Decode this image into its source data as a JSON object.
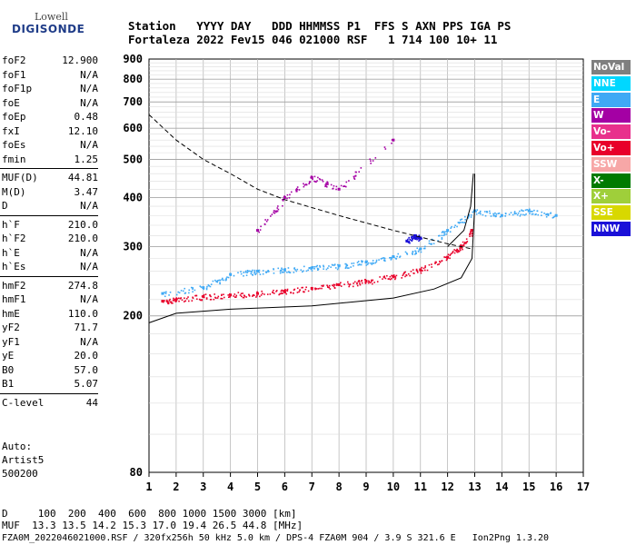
{
  "header": {
    "logo_line1": "Lowell",
    "logo_line2": "DIGISONDE",
    "row1": "Station   YYYY DAY   DDD HHMMSS P1  FFS S AXN PPS IGA PS",
    "row2": "Fortaleza 2022 Fev15 046 021000 RSF   1 714 100 10+ 11"
  },
  "params_group1": [
    {
      "k": "foF2",
      "v": "12.900"
    },
    {
      "k": "foF1",
      "v": "N/A"
    },
    {
      "k": "foF1p",
      "v": "N/A"
    },
    {
      "k": "foE",
      "v": "N/A"
    },
    {
      "k": "foEp",
      "v": "0.48"
    },
    {
      "k": "fxI",
      "v": "12.10"
    },
    {
      "k": "foEs",
      "v": "N/A"
    },
    {
      "k": "fmin",
      "v": "1.25"
    }
  ],
  "params_group2": [
    {
      "k": "MUF(D)",
      "v": "44.81"
    },
    {
      "k": "M(D)",
      "v": "3.47"
    },
    {
      "k": "D",
      "v": "N/A"
    }
  ],
  "params_group3": [
    {
      "k": "h`F",
      "v": "210.0"
    },
    {
      "k": "h`F2",
      "v": "210.0"
    },
    {
      "k": "h`E",
      "v": "N/A"
    },
    {
      "k": "h`Es",
      "v": "N/A"
    }
  ],
  "params_group4": [
    {
      "k": "hmF2",
      "v": "274.8"
    },
    {
      "k": "hmF1",
      "v": "N/A"
    },
    {
      "k": "hmE",
      "v": "110.0"
    },
    {
      "k": "yF2",
      "v": "71.7"
    },
    {
      "k": "yF1",
      "v": "N/A"
    },
    {
      "k": "yE",
      "v": "20.0"
    },
    {
      "k": "B0",
      "v": "57.0"
    },
    {
      "k": "B1",
      "v": "5.07"
    }
  ],
  "params_group5": [
    {
      "k": "C-level",
      "v": "44"
    }
  ],
  "autoscale": {
    "line1": "Auto:",
    "line2": "Artist5",
    "line3": "500200"
  },
  "footer": {
    "d_row": "D     100  200  400  600  800 1000 1500 3000 [km]",
    "muf_row": "MUF  13.3 13.5 14.2 15.3 17.0 19.4 26.5 44.8 [MHz]",
    "info_row": "FZA0M_2022046021000.RSF / 320fx256h 50 kHz 5.0 km / DPS-4 FZA0M 904 / 3.9 S 321.6 E   Ion2Png 1.3.20"
  },
  "legend": [
    {
      "label": "NoVal",
      "color": "#7f7f7f"
    },
    {
      "label": "NNE",
      "color": "#00d7ff"
    },
    {
      "label": "E",
      "color": "#3fa9f5"
    },
    {
      "label": "W",
      "color": "#a400a4"
    },
    {
      "label": "Vo-",
      "color": "#e8308c"
    },
    {
      "label": "Vo+",
      "color": "#e8002a"
    },
    {
      "label": "SSW",
      "color": "#f7a7a7"
    },
    {
      "label": "X-",
      "color": "#007a00"
    },
    {
      "label": "X+",
      "color": "#9fcf3a"
    },
    {
      "label": "SSE",
      "color": "#d8d800"
    },
    {
      "label": "NNW",
      "color": "#1a10d8"
    }
  ],
  "chart_data": {
    "type": "scatter",
    "title": "",
    "xlabel": "",
    "ylabel": "",
    "xlim": [
      1,
      17
    ],
    "ylim": [
      80,
      900
    ],
    "y_scale": "log",
    "grid": true,
    "x_ticks": [
      1,
      2,
      3,
      4,
      5,
      6,
      7,
      8,
      9,
      10,
      11,
      12,
      13,
      14,
      15,
      16,
      17
    ],
    "y_ticks": [
      80,
      200,
      300,
      400,
      500,
      600,
      700,
      800,
      900
    ],
    "legend_position": "right",
    "series": [
      {
        "name": "Vo+",
        "values": [
          {
            "x": 1.5,
            "y": 218
          },
          {
            "x": 2,
            "y": 220
          },
          {
            "x": 3,
            "y": 224
          },
          {
            "x": 4,
            "y": 226
          },
          {
            "x": 5,
            "y": 228
          },
          {
            "x": 6,
            "y": 231
          },
          {
            "x": 7,
            "y": 235
          },
          {
            "x": 8,
            "y": 240
          },
          {
            "x": 9,
            "y": 245
          },
          {
            "x": 10,
            "y": 252
          },
          {
            "x": 11,
            "y": 262
          },
          {
            "x": 12,
            "y": 282
          },
          {
            "x": 12.5,
            "y": 300
          },
          {
            "x": 12.9,
            "y": 330
          }
        ]
      },
      {
        "name": "E",
        "values": [
          {
            "x": 1.5,
            "y": 228
          },
          {
            "x": 3,
            "y": 236
          },
          {
            "x": 4,
            "y": 255
          },
          {
            "x": 5,
            "y": 260
          },
          {
            "x": 6,
            "y": 262
          },
          {
            "x": 7,
            "y": 265
          },
          {
            "x": 8,
            "y": 268
          },
          {
            "x": 9,
            "y": 274
          },
          {
            "x": 10,
            "y": 283
          },
          {
            "x": 11,
            "y": 296
          },
          {
            "x": 12,
            "y": 330
          },
          {
            "x": 13,
            "y": 370
          },
          {
            "x": 14,
            "y": 360
          },
          {
            "x": 15,
            "y": 370
          },
          {
            "x": 16,
            "y": 360
          }
        ]
      },
      {
        "name": "NNW",
        "values": [
          {
            "x": 10.5,
            "y": 310
          },
          {
            "x": 10.8,
            "y": 320
          },
          {
            "x": 11,
            "y": 315
          }
        ]
      },
      {
        "name": "W",
        "values": [
          {
            "x": 5,
            "y": 330
          },
          {
            "x": 6,
            "y": 400
          },
          {
            "x": 7,
            "y": 450
          },
          {
            "x": 8,
            "y": 420
          },
          {
            "x": 10,
            "y": 560
          }
        ]
      }
    ],
    "curves": [
      {
        "label": "virtual-height-trace",
        "style": "solid",
        "values": [
          {
            "x": 1,
            "y": 192
          },
          {
            "x": 2,
            "y": 203
          },
          {
            "x": 4,
            "y": 208
          },
          {
            "x": 7,
            "y": 212
          },
          {
            "x": 10,
            "y": 222
          },
          {
            "x": 11.5,
            "y": 234
          },
          {
            "x": 12.5,
            "y": 250
          },
          {
            "x": 12.9,
            "y": 280
          },
          {
            "x": 13,
            "y": 380
          },
          {
            "x": 13,
            "y": 460
          }
        ]
      },
      {
        "label": "profile-trace",
        "style": "solid",
        "values": [
          {
            "x": 12,
            "y": 300
          },
          {
            "x": 12.6,
            "y": 330
          },
          {
            "x": 12.85,
            "y": 380
          },
          {
            "x": 12.95,
            "y": 460
          }
        ]
      },
      {
        "label": "muf-curve",
        "style": "dashed",
        "values": [
          {
            "x": 1,
            "y": 650
          },
          {
            "x": 2,
            "y": 560
          },
          {
            "x": 3,
            "y": 500
          },
          {
            "x": 4,
            "y": 460
          },
          {
            "x": 5,
            "y": 420
          },
          {
            "x": 6,
            "y": 395
          },
          {
            "x": 8,
            "y": 360
          },
          {
            "x": 10,
            "y": 330
          },
          {
            "x": 12,
            "y": 305
          },
          {
            "x": 12.9,
            "y": 296
          }
        ]
      }
    ]
  }
}
